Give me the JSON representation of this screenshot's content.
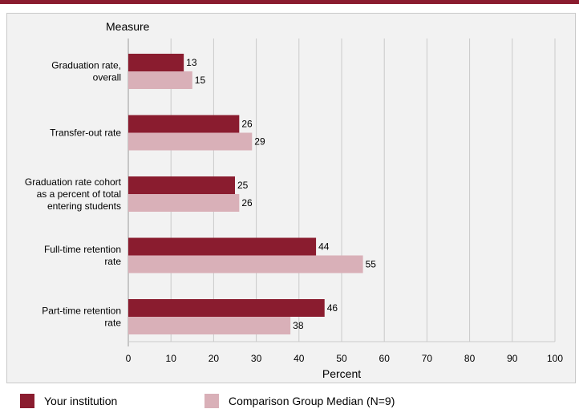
{
  "colors": {
    "top_bar": "#8a1c2f",
    "your_institution": "#8a1c2f",
    "comparison": "#d9b0b8",
    "grid": "#c9c9c9",
    "panel": "#f2f2f2"
  },
  "legend": {
    "your_institution": "Your institution",
    "comparison": "Comparison Group Median (N=9)"
  },
  "chart_data": {
    "type": "bar",
    "orientation": "horizontal",
    "category_axis_title": "Measure",
    "xlabel": "Percent",
    "xlim": [
      0,
      100
    ],
    "xticks": [
      0,
      10,
      20,
      30,
      40,
      50,
      60,
      70,
      80,
      90,
      100
    ],
    "grid": true,
    "legend_position": "bottom",
    "categories": [
      [
        "Graduation rate,",
        "overall"
      ],
      [
        "Transfer-out rate"
      ],
      [
        "Graduation rate cohort",
        "as a percent of total",
        "entering students"
      ],
      [
        "Full-time retention",
        "rate"
      ],
      [
        "Part-time retention",
        "rate"
      ]
    ],
    "series": [
      {
        "name": "Your institution",
        "values": [
          13,
          26,
          25,
          44,
          46
        ]
      },
      {
        "name": "Comparison Group Median (N=9)",
        "values": [
          15,
          29,
          26,
          55,
          38
        ]
      }
    ]
  }
}
